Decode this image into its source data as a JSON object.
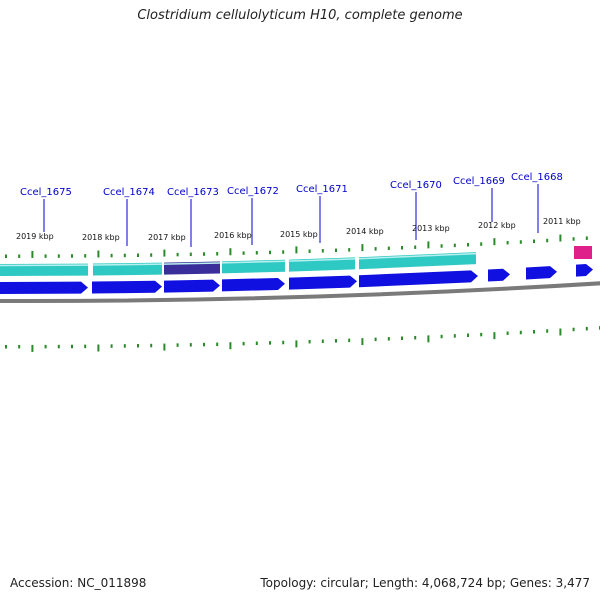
{
  "title": "Clostridium cellulolyticum H10, complete genome",
  "footer": {
    "accession": "Accession: NC_011898",
    "summary": "Topology: circular; Length: 4,068,724 bp; Genes: 3,477"
  },
  "colors": {
    "backbone": "#7a7a7a",
    "tick": "#2a8a2a",
    "gene_forward": "#1010e0",
    "cds_track": "#2fc9c4",
    "cds_selected": "#3a2f9a",
    "misc_feature": "#e0208a",
    "label": "#0000cc"
  },
  "scale": {
    "tick_labels": [
      "2019 kbp",
      "2018 kbp",
      "2017 kbp",
      "2016 kbp",
      "2015 kbp",
      "2014 kbp",
      "2013 kbp",
      "2012 kbp",
      "2011 kbp"
    ]
  },
  "genes": [
    {
      "name": "Ccel_1675"
    },
    {
      "name": "Ccel_1674"
    },
    {
      "name": "Ccel_1673"
    },
    {
      "name": "Ccel_1672"
    },
    {
      "name": "Ccel_1671"
    },
    {
      "name": "Ccel_1670"
    },
    {
      "name": "Ccel_1669"
    },
    {
      "name": "Ccel_1668"
    }
  ]
}
